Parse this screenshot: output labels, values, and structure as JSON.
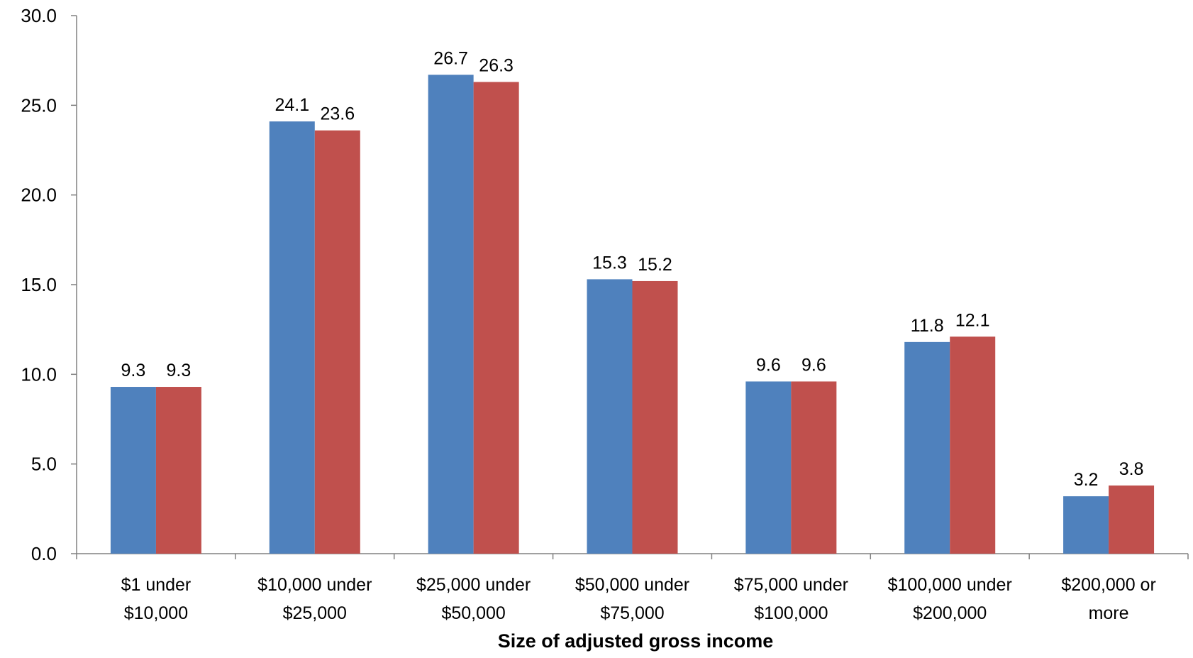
{
  "chart_data": {
    "type": "bar",
    "categories": [
      [
        "$1 under",
        "$10,000"
      ],
      [
        "$10,000 under",
        "$25,000"
      ],
      [
        "$25,000 under",
        "$50,000"
      ],
      [
        "$50,000 under",
        "$75,000"
      ],
      [
        "$75,000 under",
        "$100,000"
      ],
      [
        "$100,000 under",
        "$200,000"
      ],
      [
        "$200,000 or",
        "more"
      ]
    ],
    "series": [
      {
        "color": "#4F81BD",
        "values": [
          9.3,
          24.1,
          26.7,
          15.3,
          9.6,
          11.8,
          3.2
        ]
      },
      {
        "color": "#C0504D",
        "values": [
          9.3,
          23.6,
          26.3,
          15.2,
          9.6,
          12.1,
          3.8
        ]
      }
    ],
    "xlabel": "Size of adjusted gross income",
    "ylabel": "",
    "ylim": [
      0,
      30
    ],
    "yticks": [
      "0.0",
      "5.0",
      "10.0",
      "15.0",
      "20.0",
      "25.0",
      "30.0"
    ],
    "ytick_values": [
      0,
      5,
      10,
      15,
      20,
      25,
      30
    ],
    "data_labels": true,
    "grid": false,
    "legend": "none"
  }
}
